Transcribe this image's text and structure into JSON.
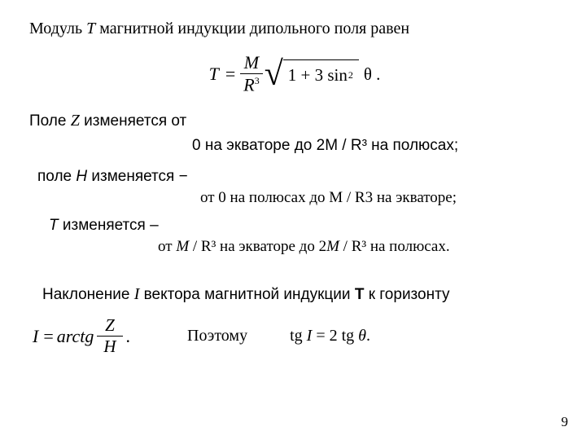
{
  "title": {
    "pre": "Модуль ",
    "T": "Т",
    "post": " магнитной индукции дипольного поля равен"
  },
  "formula1": {
    "T": "T",
    "eq": "=",
    "num": "M",
    "den_base": "R",
    "den_exp": "3",
    "rad_prefix": "1 + 3 sin",
    "rad_exp": "2",
    "theta": "θ",
    "period": "."
  },
  "z_line": {
    "pre": "Поле ",
    "Z": "Z",
    "post": " изменяется от"
  },
  "z_range": "0 на экваторе до 2M / R³ на полюсах;",
  "h_line": {
    "pre": "поле ",
    "H": "H",
    "post": " изменяется −"
  },
  "h_range": "от 0 на полюсах до M / R3 на экваторе;",
  "t_line": {
    "T": "T",
    "post": " изменяется –"
  },
  "t_range": {
    "pre": "от ",
    "m1": "M",
    "mid1": " / R³ на экваторе до 2",
    "m2": "M",
    "mid2": " / R³ на полюсах."
  },
  "incl": {
    "pre": "Наклонение ",
    "I": "I",
    "mid": " вектора магнитной индукции ",
    "Tbold": "T",
    "post": " к горизонту"
  },
  "formula2": {
    "I": "I",
    "eq": "=",
    "arctg": "arctg",
    "num": "Z",
    "den": "H",
    "dot": "."
  },
  "therefore": "Поэтому",
  "tg_result": {
    "pre": "tg ",
    "I": "I",
    "mid": " = 2 tg ",
    "theta": "θ",
    "dot": "."
  },
  "page_num": "9"
}
